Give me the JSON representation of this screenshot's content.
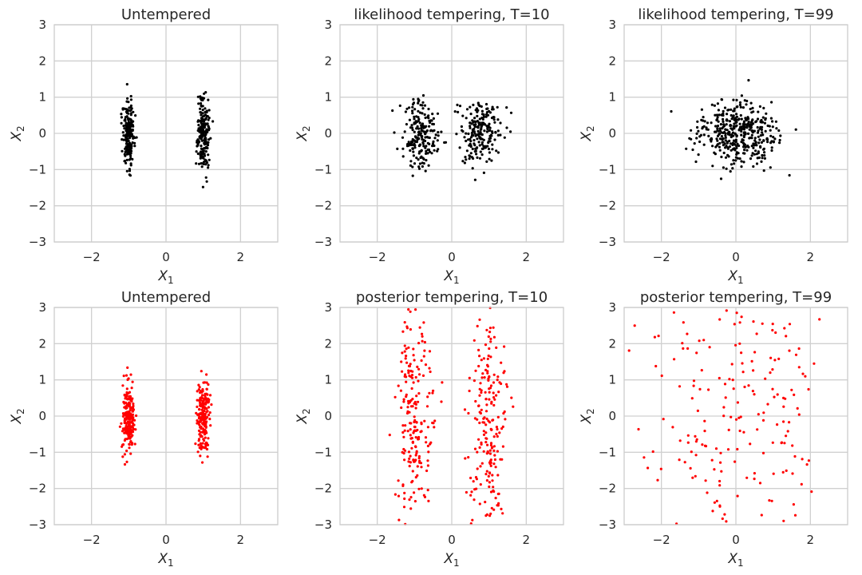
{
  "figure": {
    "rows": 2,
    "cols": 3,
    "point_count_per_cluster": 200,
    "colors": {
      "black_points": "#000000",
      "red_points": "#ff0000",
      "grid": "#d0d0d0",
      "spine": "#cccccc",
      "text": "#262626"
    }
  },
  "chart_data": [
    {
      "type": "scatter",
      "title": "Untempered",
      "xlabel": "X_1",
      "ylabel": "X_2",
      "xlim": [
        -3,
        3
      ],
      "ylim": [
        -3,
        3
      ],
      "xticks": [
        -2,
        0,
        2
      ],
      "yticks": [
        -3,
        -2,
        -1,
        0,
        1,
        2,
        3
      ],
      "grid": true,
      "color": "#000000",
      "clusters": [
        {
          "center_x": -1.0,
          "center_y": 0.0,
          "sd_x": 0.08,
          "sd_y": 0.45
        },
        {
          "center_x": 1.0,
          "center_y": 0.0,
          "sd_x": 0.08,
          "sd_y": 0.5
        }
      ],
      "clip_y": [
        -1.6,
        1.5
      ]
    },
    {
      "type": "scatter",
      "title": "likelihood tempering, T=10",
      "xlabel": "X_1",
      "ylabel": "X_2",
      "xlim": [
        -3,
        3
      ],
      "ylim": [
        -3,
        3
      ],
      "xticks": [
        -2,
        0,
        2
      ],
      "yticks": [
        -3,
        -2,
        -1,
        0,
        1,
        2,
        3
      ],
      "grid": true,
      "color": "#000000",
      "clusters": [
        {
          "center_x": -0.8,
          "center_y": 0.0,
          "sd_x": 0.28,
          "sd_y": 0.45
        },
        {
          "center_x": 0.8,
          "center_y": 0.0,
          "sd_x": 0.28,
          "sd_y": 0.5
        }
      ],
      "clip_y": [
        -1.7,
        1.3
      ]
    },
    {
      "type": "scatter",
      "title": "likelihood tempering, T=99",
      "xlabel": "X_1",
      "ylabel": "X_2",
      "xlim": [
        -3,
        3
      ],
      "ylim": [
        -3,
        3
      ],
      "xticks": [
        -2,
        0,
        2
      ],
      "yticks": [
        -3,
        -2,
        -1,
        0,
        1,
        2,
        3
      ],
      "grid": true,
      "color": "#000000",
      "clusters": [
        {
          "center_x": -0.2,
          "center_y": 0.0,
          "sd_x": 0.45,
          "sd_y": 0.45
        },
        {
          "center_x": 0.3,
          "center_y": 0.0,
          "sd_x": 0.45,
          "sd_y": 0.45
        }
      ],
      "clip_y": [
        -1.4,
        1.5
      ]
    },
    {
      "type": "scatter",
      "title": "Untempered",
      "xlabel": "X_1",
      "ylabel": "X_2",
      "xlim": [
        -3,
        3
      ],
      "ylim": [
        -3,
        3
      ],
      "xticks": [
        -2,
        0,
        2
      ],
      "yticks": [
        -3,
        -2,
        -1,
        0,
        1,
        2,
        3
      ],
      "grid": true,
      "color": "#ff0000",
      "clusters": [
        {
          "center_x": -1.0,
          "center_y": 0.0,
          "sd_x": 0.08,
          "sd_y": 0.5
        },
        {
          "center_x": 1.0,
          "center_y": 0.0,
          "sd_x": 0.08,
          "sd_y": 0.5
        }
      ],
      "clip_y": [
        -1.7,
        1.4
      ]
    },
    {
      "type": "scatter",
      "title": "posterior tempering, T=10",
      "xlabel": "X_1",
      "ylabel": "X_2",
      "xlim": [
        -3,
        3
      ],
      "ylim": [
        -3,
        3
      ],
      "xticks": [
        -2,
        0,
        2
      ],
      "yticks": [
        -3,
        -2,
        -1,
        0,
        1,
        2,
        3
      ],
      "grid": true,
      "color": "#ff0000",
      "clusters": [
        {
          "center_x": -1.0,
          "center_y": 0.0,
          "sd_x": 0.25,
          "sd_y": 1.6
        },
        {
          "center_x": 1.0,
          "center_y": 0.0,
          "sd_x": 0.25,
          "sd_y": 1.6
        }
      ],
      "clip_y": [
        -3,
        3
      ]
    },
    {
      "type": "scatter",
      "title": "posterior tempering, T=99",
      "xlabel": "X_1",
      "ylabel": "X_2",
      "xlim": [
        -3,
        3
      ],
      "ylim": [
        -3,
        3
      ],
      "xticks": [
        -2,
        0,
        2
      ],
      "yticks": [
        -3,
        -2,
        -1,
        0,
        1,
        2,
        3
      ],
      "grid": true,
      "color": "#ff0000",
      "clusters": [
        {
          "center_x": -0.9,
          "center_y": 0.0,
          "sd_x": 0.8,
          "sd_y": 3.0
        },
        {
          "center_x": 0.9,
          "center_y": 0.0,
          "sd_x": 0.8,
          "sd_y": 3.0
        }
      ],
      "clip_y": [
        -3,
        3
      ],
      "point_count_per_cluster": 90
    }
  ]
}
